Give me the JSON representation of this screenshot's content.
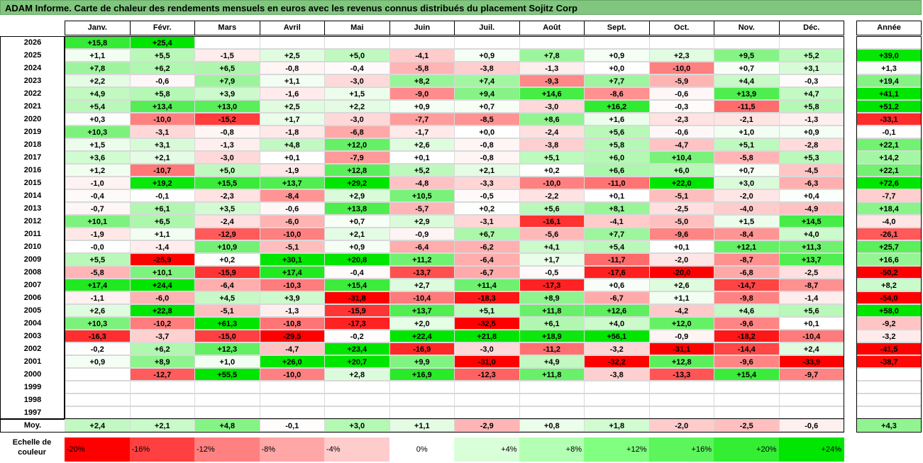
{
  "title": "ADAM Informe. Carte de chaleur des rendements mensuels en euros avec les revenus connus distribués du placement Sojitz Corp",
  "chart_data": {
    "type": "heatmap",
    "months": [
      "Janv.",
      "Févr.",
      "Mars",
      "Avril",
      "Mai",
      "Juin",
      "Juil.",
      "Août",
      "Sept.",
      "Oct.",
      "Nov.",
      "Déc."
    ],
    "annual_header": "Année",
    "rows": [
      {
        "year": "2026",
        "values": [
          "+15,8",
          "+25,4",
          "",
          "",
          "",
          "",
          "",
          "",
          "",
          "",
          "",
          ""
        ],
        "annual": ""
      },
      {
        "year": "2025",
        "values": [
          "+1,1",
          "+5,5",
          "-1,5",
          "+2,5",
          "+5,0",
          "-4,1",
          "+0,9",
          "+7,8",
          "+0,9",
          "+2,3",
          "+9,5",
          "+5,2"
        ],
        "annual": "+39,0"
      },
      {
        "year": "2024",
        "values": [
          "+7,8",
          "+6,2",
          "+6,5",
          "-0,8",
          "-0,4",
          "-5,8",
          "-3,8",
          "-1,3",
          "+0,0",
          "-10,0",
          "+0,7",
          "+3,1"
        ],
        "annual": "+1,3"
      },
      {
        "year": "2023",
        "values": [
          "+2,2",
          "-0,6",
          "+7,9",
          "+1,1",
          "-3,0",
          "+8,2",
          "+7,4",
          "-9,3",
          "+7,7",
          "-5,9",
          "+4,4",
          "-0,3"
        ],
        "annual": "+19,4"
      },
      {
        "year": "2022",
        "values": [
          "+4,9",
          "+5,8",
          "+3,9",
          "-1,6",
          "+1,5",
          "-9,0",
          "+9,4",
          "+14,6",
          "-8,6",
          "-0,6",
          "+13,9",
          "+4,7"
        ],
        "annual": "+41,1"
      },
      {
        "year": "2021",
        "values": [
          "+5,4",
          "+13,4",
          "+13,0",
          "+2,5",
          "+2,2",
          "+0,9",
          "+0,7",
          "-3,0",
          "+16,2",
          "-0,3",
          "-11,5",
          "+5,8"
        ],
        "annual": "+51,2"
      },
      {
        "year": "2020",
        "values": [
          "+0,3",
          "-10,0",
          "-15,2",
          "+1,7",
          "-3,0",
          "-7,7",
          "-8,5",
          "+8,6",
          "+1,6",
          "-2,3",
          "-2,1",
          "-1,3"
        ],
        "annual": "-33,1"
      },
      {
        "year": "2019",
        "values": [
          "+10,3",
          "-3,1",
          "-0,8",
          "-1,8",
          "-6,8",
          "-1,7",
          "+0,0",
          "-2,4",
          "+5,6",
          "-0,6",
          "+1,0",
          "+0,9"
        ],
        "annual": "-0,1"
      },
      {
        "year": "2018",
        "values": [
          "+1,5",
          "+3,1",
          "-1,3",
          "+4,8",
          "+12,0",
          "+2,6",
          "-0,8",
          "-3,8",
          "+5,8",
          "-4,7",
          "+5,1",
          "-2,8"
        ],
        "annual": "+22,1"
      },
      {
        "year": "2017",
        "values": [
          "+3,6",
          "+2,1",
          "-3,0",
          "+0,1",
          "-7,9",
          "+0,1",
          "-0,8",
          "+5,1",
          "+6,0",
          "+10,4",
          "-5,8",
          "+5,3"
        ],
        "annual": "+14,2"
      },
      {
        "year": "2016",
        "values": [
          "+1,2",
          "-10,7",
          "+5,0",
          "-1,9",
          "+12,8",
          "+5,2",
          "+2,1",
          "+0,2",
          "+6,6",
          "+6,0",
          "+0,7",
          "-4,5"
        ],
        "annual": "+22,1"
      },
      {
        "year": "2015",
        "values": [
          "-1,0",
          "+19,2",
          "+15,5",
          "+13,7",
          "+29,2",
          "-4,8",
          "-3,3",
          "-10,0",
          "-11,0",
          "+22,0",
          "+3,0",
          "-6,3"
        ],
        "annual": "+72,6"
      },
      {
        "year": "2014",
        "values": [
          "-0,4",
          "-0,1",
          "-2,3",
          "-8,4",
          "+2,9",
          "+10,5",
          "-0,5",
          "-2,2",
          "+0,1",
          "-5,1",
          "-2,0",
          "+0,4"
        ],
        "annual": "-7,7"
      },
      {
        "year": "2013",
        "values": [
          "-0,7",
          "+6,1",
          "+3,5",
          "-0,6",
          "+13,8",
          "-5,7",
          "+0,2",
          "+5,6",
          "+8,1",
          "-2,5",
          "-4,0",
          "-4,9"
        ],
        "annual": "+18,4"
      },
      {
        "year": "2012",
        "values": [
          "+10,1",
          "+6,5",
          "-2,4",
          "-6,0",
          "+0,7",
          "+2,9",
          "-3,1",
          "-16,1",
          "-4,1",
          "-5,0",
          "+1,5",
          "+14,5"
        ],
        "annual": "-4,0"
      },
      {
        "year": "2011",
        "values": [
          "-1,9",
          "+1,1",
          "-12,9",
          "-10,0",
          "+2,1",
          "-0,9",
          "+6,7",
          "-5,6",
          "+7,7",
          "-9,6",
          "-8,4",
          "+4,0"
        ],
        "annual": "-26,1"
      },
      {
        "year": "2010",
        "values": [
          "-0,0",
          "-1,4",
          "+10,9",
          "-5,1",
          "+0,9",
          "-6,4",
          "-6,2",
          "+4,1",
          "+5,4",
          "+0,1",
          "+12,1",
          "+11,3"
        ],
        "annual": "+25,7"
      },
      {
        "year": "2009",
        "values": [
          "+5,5",
          "-25,9",
          "+0,2",
          "+30,1",
          "+20,8",
          "+11,2",
          "-6,4",
          "+1,7",
          "-11,7",
          "-2,0",
          "-8,7",
          "+13,7"
        ],
        "annual": "+16,6"
      },
      {
        "year": "2008",
        "values": [
          "-5,8",
          "+10,1",
          "-15,9",
          "+17,4",
          "-0,4",
          "-13,7",
          "-6,7",
          "-0,5",
          "-17,6",
          "-20,0",
          "-6,8",
          "-2,5"
        ],
        "annual": "-50,2"
      },
      {
        "year": "2007",
        "values": [
          "+17,4",
          "+24,4",
          "-6,4",
          "-10,3",
          "+15,4",
          "+2,7",
          "+11,4",
          "-17,3",
          "+0,6",
          "+2,6",
          "-14,7",
          "-8,7"
        ],
        "annual": "+8,2"
      },
      {
        "year": "2006",
        "values": [
          "-1,1",
          "-6,0",
          "+4,5",
          "+3,9",
          "-31,8",
          "-10,4",
          "-18,3",
          "+8,9",
          "-6,7",
          "+1,1",
          "-9,8",
          "-1,4"
        ],
        "annual": "-54,0"
      },
      {
        "year": "2005",
        "values": [
          "+2,6",
          "+22,8",
          "-5,1",
          "-1,3",
          "-15,9",
          "+13,7",
          "+5,1",
          "+11,8",
          "+12,6",
          "-4,2",
          "+4,6",
          "+5,6"
        ],
        "annual": "+58,0"
      },
      {
        "year": "2004",
        "values": [
          "+10,3",
          "-10,2",
          "+61,3",
          "-10,8",
          "-17,3",
          "+2,0",
          "-32,5",
          "+6,1",
          "+4,0",
          "+12,0",
          "-9,6",
          "+0,1"
        ],
        "annual": "-9,2"
      },
      {
        "year": "2003",
        "values": [
          "-16,3",
          "-3,7",
          "-15,0",
          "-29,5",
          "-0,2",
          "+22,4",
          "+21,8",
          "+18,9",
          "+56,1",
          "-0,9",
          "-18,2",
          "-10,4"
        ],
        "annual": "-3,2"
      },
      {
        "year": "2002",
        "values": [
          "-0,2",
          "+6,2",
          "+12,3",
          "-4,7",
          "+23,4",
          "-16,9",
          "-3,0",
          "-11,2",
          "-3,2",
          "-31,1",
          "-14,4",
          "+2,4"
        ],
        "annual": "-41,5"
      },
      {
        "year": "2001",
        "values": [
          "+0,9",
          "+8,9",
          "+1,0",
          "+26,0",
          "+20,7",
          "+9,9",
          "-31,0",
          "+4,9",
          "-32,2",
          "+12,8",
          "-9,6",
          "-33,9"
        ],
        "annual": "-38,7"
      },
      {
        "year": "2000",
        "values": [
          "",
          "-12,7",
          "+55,5",
          "-10,0",
          "+2,8",
          "+16,9",
          "-12,3",
          "+11,8",
          "-3,8",
          "-13,3",
          "+15,4",
          "-9,7"
        ],
        "annual": ""
      },
      {
        "year": "1999",
        "values": [
          "",
          "",
          "",
          "",
          "",
          "",
          "",
          "",
          "",
          "",
          "",
          ""
        ],
        "annual": ""
      },
      {
        "year": "1998",
        "values": [
          "",
          "",
          "",
          "",
          "",
          "",
          "",
          "",
          "",
          "",
          "",
          ""
        ],
        "annual": ""
      },
      {
        "year": "1997",
        "values": [
          "",
          "",
          "",
          "",
          "",
          "",
          "",
          "",
          "",
          "",
          "",
          ""
        ],
        "annual": ""
      }
    ],
    "average": {
      "label": "Moy.",
      "values": [
        "+2,4",
        "+2,1",
        "+4,8",
        "-0,1",
        "+3,0",
        "+1,1",
        "-2,9",
        "+0,8",
        "+1,8",
        "-2,0",
        "-2,5",
        "-0,6"
      ],
      "annual": "+4,3"
    },
    "legend": {
      "label_line1": "Echelle de",
      "label_line2": "couleur",
      "items": [
        {
          "text": "-20%",
          "color": "#ff0000"
        },
        {
          "text": "-16%",
          "color": "#ff4040"
        },
        {
          "text": "-12%",
          "color": "#ff8080"
        },
        {
          "text": "-8%",
          "color": "#ffa6a6"
        },
        {
          "text": "-4%",
          "color": "#ffcccc"
        },
        {
          "text": "0%",
          "color": "#ffffff"
        },
        {
          "text": "+4%",
          "color": "#d9ffd9"
        },
        {
          "text": "+8%",
          "color": "#b3ffb3"
        },
        {
          "text": "+12%",
          "color": "#80ff80"
        },
        {
          "text": "+16%",
          "color": "#5cf55c"
        },
        {
          "text": "+20%",
          "color": "#33ee33"
        },
        {
          "text": "+24%",
          "color": "#00e600"
        }
      ]
    }
  }
}
